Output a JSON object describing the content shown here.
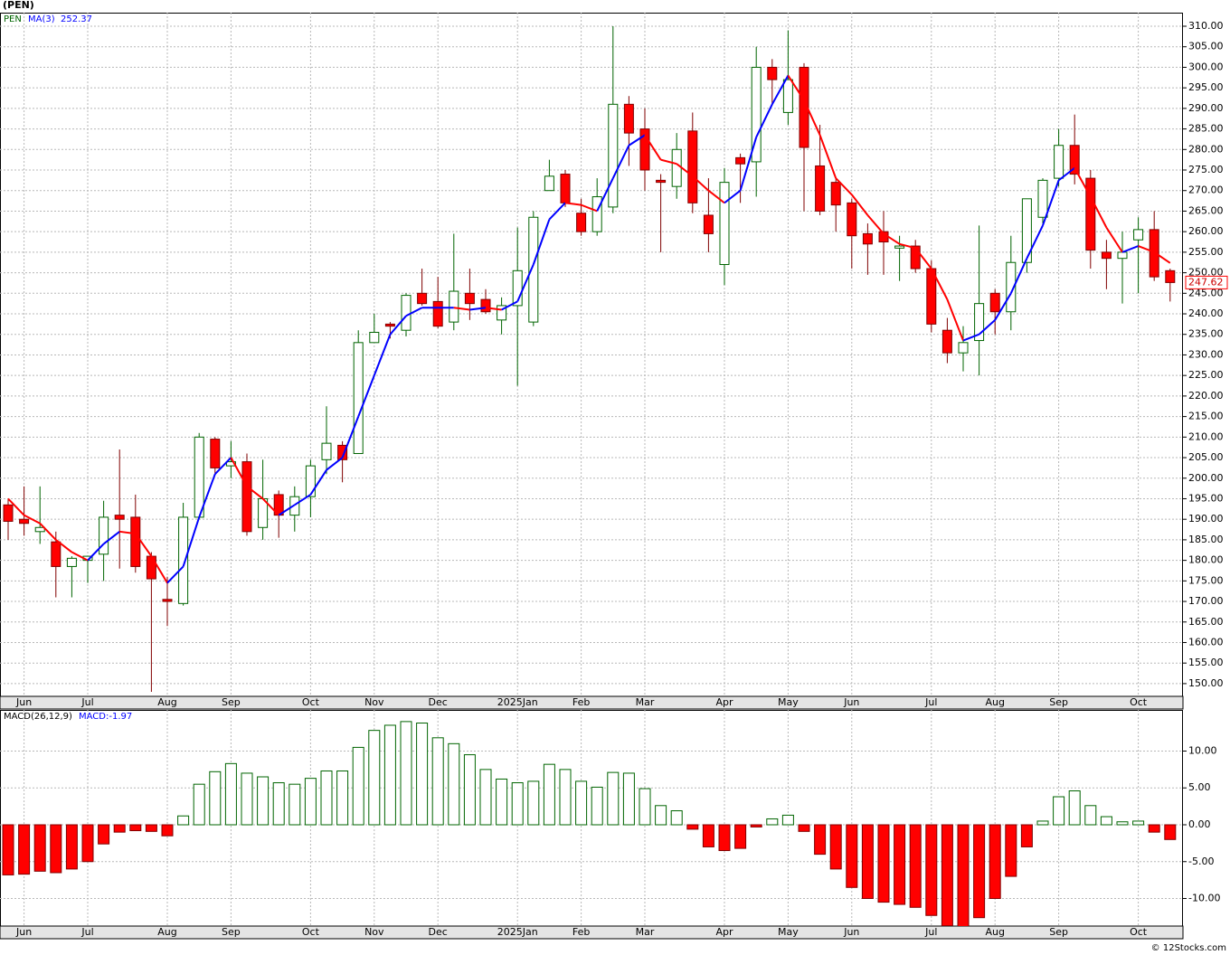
{
  "chart_data": [
    {
      "type": "candlestick",
      "title": "(PEN)",
      "symbol": "PEN",
      "categories": [
        null,
        "Jun",
        null,
        null,
        null,
        "Jul",
        null,
        null,
        null,
        null,
        "Aug",
        null,
        null,
        null,
        "Sep",
        null,
        null,
        null,
        null,
        "Oct",
        null,
        null,
        null,
        "Nov",
        null,
        null,
        null,
        "Dec",
        null,
        null,
        null,
        null,
        "2025Jan",
        null,
        null,
        null,
        "Feb",
        null,
        null,
        null,
        "Mar",
        null,
        null,
        null,
        null,
        "Apr",
        null,
        null,
        null,
        "May",
        null,
        null,
        null,
        "Jun",
        null,
        null,
        null,
        null,
        "Jul",
        null,
        null,
        null,
        "Aug",
        null,
        null,
        null,
        "Sep",
        null,
        null,
        null,
        null,
        "Oct",
        null,
        null
      ],
      "open": [
        193.5,
        190,
        187,
        184.5,
        178.5,
        180,
        181.5,
        191,
        190.5,
        181,
        170.5,
        169.5,
        190.5,
        209.5,
        203,
        204,
        188,
        196,
        191,
        195.5,
        204.5,
        208,
        206,
        233,
        237.5,
        236,
        245,
        243,
        238,
        245,
        243.5,
        238.5,
        242,
        238,
        270,
        274,
        264.5,
        260,
        266,
        291,
        285,
        272.5,
        271,
        284.5,
        264,
        252,
        278,
        277,
        300,
        289,
        300,
        276,
        272,
        267,
        259.5,
        260,
        256,
        256.5,
        251,
        236,
        230.5,
        233.5,
        245,
        240.5,
        252.5,
        263.5,
        273,
        281,
        273,
        255,
        253.5,
        258,
        260.5,
        250.5
      ],
      "high": [
        195,
        198,
        198,
        187,
        181,
        181,
        194.5,
        207,
        196,
        182,
        176,
        194,
        211,
        210,
        209,
        206,
        204.5,
        197,
        198,
        204.5,
        217.5,
        209,
        236,
        240,
        238,
        245,
        251,
        249,
        259.5,
        251,
        246,
        244,
        261,
        265,
        277.5,
        275,
        268,
        273,
        310,
        293,
        290,
        274,
        284,
        289,
        273,
        275.5,
        279,
        305,
        302,
        309,
        301,
        286,
        273,
        268,
        262,
        265,
        259,
        258,
        253,
        239,
        237,
        261.5,
        246,
        259,
        268,
        273,
        285,
        288.5,
        275,
        258,
        260,
        263.5,
        265,
        251
      ],
      "low": [
        185,
        186,
        184,
        171,
        171,
        174.5,
        175,
        178,
        177,
        148,
        164,
        169,
        190,
        201,
        200,
        186,
        185,
        185.5,
        187,
        190.5,
        201,
        199,
        206,
        233,
        234,
        234.5,
        242,
        236.5,
        236,
        238.5,
        240,
        235,
        222.5,
        237,
        270,
        266,
        259,
        259,
        264.5,
        276,
        270,
        255,
        268,
        264.5,
        255,
        247,
        267,
        268.5,
        291,
        286,
        265,
        264,
        260,
        251,
        249.5,
        249.5,
        248,
        250,
        235.5,
        228,
        226,
        225,
        235,
        236,
        250,
        262,
        271,
        271.5,
        251,
        246,
        242.5,
        245,
        248,
        243
      ],
      "close": [
        189.5,
        189,
        188,
        178.5,
        180.5,
        181,
        190.5,
        190,
        178.5,
        175.5,
        170,
        190.5,
        210,
        202.5,
        204,
        187,
        195,
        191,
        195.5,
        203,
        208.5,
        204.5,
        233,
        235.5,
        237,
        244.5,
        242.5,
        237,
        245.5,
        242.5,
        240.5,
        242,
        250.5,
        263.5,
        273.5,
        267,
        260,
        268.5,
        291,
        284,
        275,
        272,
        280,
        267,
        259.5,
        272,
        276.5,
        300,
        297,
        297,
        280.5,
        265,
        266.5,
        259,
        257,
        257.5,
        256.5,
        251,
        237.5,
        230.5,
        233,
        242.5,
        240.5,
        252.5,
        268,
        272.5,
        281,
        274,
        255.5,
        253.5,
        255,
        260.5,
        249,
        247.62
      ],
      "up_color": "#006400",
      "down_color": "#ff0000",
      "series": [
        {
          "name": "MA(3)",
          "color": "#0000ff",
          "down_color": "#ff0000",
          "values": [
            195,
            191,
            189,
            185,
            182,
            180,
            184,
            187,
            186.5,
            181,
            174.5,
            178.5,
            190.5,
            201,
            205,
            198,
            195,
            191,
            193.5,
            196,
            202,
            205,
            215,
            225,
            235,
            239.5,
            241.5,
            241.5,
            241.5,
            241,
            241.5,
            241,
            243,
            252,
            263,
            267,
            266.5,
            265,
            273,
            281,
            283.5,
            277.5,
            276.5,
            273.5,
            270,
            267,
            270,
            283,
            291,
            298,
            292,
            283.5,
            273,
            269,
            264,
            259.5,
            257,
            256,
            251,
            243.5,
            233.5,
            235,
            238.5,
            245,
            253.5,
            261.5,
            272.5,
            275.5,
            268.5,
            261,
            255,
            256.5,
            255,
            252.37
          ]
        }
      ],
      "ylim": [
        146.9,
        313.3
      ],
      "yticks": [
        {
          "value": 150,
          "label": "150.00"
        },
        {
          "value": 155,
          "label": "155.00"
        },
        {
          "value": 160,
          "label": "160.00"
        },
        {
          "value": 165,
          "label": "165.00"
        },
        {
          "value": 170,
          "label": "170.00"
        },
        {
          "value": 175,
          "label": "175.00"
        },
        {
          "value": 180,
          "label": "180.00"
        },
        {
          "value": 185,
          "label": "185.00"
        },
        {
          "value": 190,
          "label": "190.00"
        },
        {
          "value": 195,
          "label": "195.00"
        },
        {
          "value": 200,
          "label": "200.00"
        },
        {
          "value": 205,
          "label": "205.00"
        },
        {
          "value": 210,
          "label": "210.00"
        },
        {
          "value": 215,
          "label": "215.00"
        },
        {
          "value": 220,
          "label": "220.00"
        },
        {
          "value": 225,
          "label": "225.00"
        },
        {
          "value": 230,
          "label": "230.00"
        },
        {
          "value": 235,
          "label": "235.00"
        },
        {
          "value": 240,
          "label": "240.00"
        },
        {
          "value": 245,
          "label": "245.00"
        },
        {
          "value": 250,
          "label": "250.00"
        },
        {
          "value": 255,
          "label": "255.00"
        },
        {
          "value": 260,
          "label": "260.00"
        },
        {
          "value": 265,
          "label": "265.00"
        },
        {
          "value": 270,
          "label": "270.00"
        },
        {
          "value": 275,
          "label": "275.00"
        },
        {
          "value": 280,
          "label": "280.00"
        },
        {
          "value": 285,
          "label": "285.00"
        },
        {
          "value": 290,
          "label": "290.00"
        },
        {
          "value": 295,
          "label": "295.00"
        },
        {
          "value": 300,
          "label": "300.00"
        },
        {
          "value": 305,
          "label": "305.00"
        },
        {
          "value": 310,
          "label": "310.00"
        }
      ],
      "grid": true
    },
    {
      "type": "bar",
      "title": "MACD(26,12,9)",
      "legend": "MACD:-1.97",
      "categories": [
        null,
        "Jun",
        null,
        null,
        null,
        "Jul",
        null,
        null,
        null,
        null,
        "Aug",
        null,
        null,
        null,
        "Sep",
        null,
        null,
        null,
        null,
        "Oct",
        null,
        null,
        null,
        "Nov",
        null,
        null,
        null,
        "Dec",
        null,
        null,
        null,
        null,
        "2025Jan",
        null,
        null,
        null,
        "Feb",
        null,
        null,
        null,
        "Mar",
        null,
        null,
        null,
        null,
        "Apr",
        null,
        null,
        null,
        "May",
        null,
        null,
        null,
        "Jun",
        null,
        null,
        null,
        null,
        "Jul",
        null,
        null,
        null,
        "Aug",
        null,
        null,
        null,
        "Sep",
        null,
        null,
        null,
        null,
        "Oct",
        null,
        null
      ],
      "values": [
        -6.8,
        -6.7,
        -6.3,
        -6.5,
        -6.0,
        -5.0,
        -2.6,
        -1.0,
        -0.8,
        -0.9,
        -1.5,
        1.2,
        5.5,
        7.2,
        8.3,
        7.0,
        6.5,
        5.7,
        5.5,
        6.3,
        7.3,
        7.3,
        10.5,
        12.8,
        13.5,
        14.0,
        13.8,
        11.8,
        11.0,
        9.5,
        7.5,
        6.2,
        5.7,
        5.9,
        8.2,
        7.5,
        5.9,
        5.1,
        7.1,
        7.0,
        4.9,
        2.6,
        1.9,
        -0.6,
        -3.0,
        -3.5,
        -3.2,
        -0.3,
        0.8,
        1.3,
        -0.9,
        -4.0,
        -6.0,
        -8.5,
        -10.0,
        -10.5,
        -10.8,
        -11.2,
        -12.3,
        -13.7,
        -13.8,
        -12.6,
        -10.0,
        -7.0,
        -3.0,
        0.5,
        3.8,
        4.6,
        2.6,
        1.1,
        0.4,
        0.5,
        -1.0,
        -2.0
      ],
      "up_color": "#006400",
      "down_color": "#ff0000",
      "ylim": [
        -13.74,
        15.58
      ],
      "yticks": [
        {
          "value": -10,
          "label": "-10.00"
        },
        {
          "value": -5,
          "label": "-5.00"
        },
        {
          "value": 0,
          "label": "0.00"
        },
        {
          "value": 5,
          "label": "5.00"
        },
        {
          "value": 10,
          "label": "10.00"
        }
      ],
      "grid": true
    }
  ],
  "footer": "© 12Stocks.com"
}
